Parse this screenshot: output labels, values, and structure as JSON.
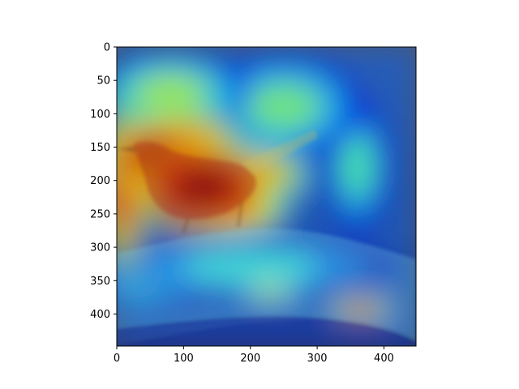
{
  "chart_data": {
    "type": "heatmap",
    "title": "",
    "xlabel": "",
    "ylabel": "",
    "xlim": [
      0,
      448
    ],
    "ylim": [
      448,
      0
    ],
    "y_inverted": true,
    "grid": false,
    "colormap": "jet",
    "overlay_on": "photo of a bird perched on a branch",
    "x_ticks": [
      {
        "value": 0,
        "label": "0"
      },
      {
        "value": 100,
        "label": "100"
      },
      {
        "value": 200,
        "label": "200"
      },
      {
        "value": 300,
        "label": "300"
      },
      {
        "value": 400,
        "label": "400"
      }
    ],
    "y_ticks": [
      {
        "value": 0,
        "label": "0"
      },
      {
        "value": 50,
        "label": "50"
      },
      {
        "value": 100,
        "label": "100"
      },
      {
        "value": 150,
        "label": "150"
      },
      {
        "value": 200,
        "label": "200"
      },
      {
        "value": 250,
        "label": "250"
      },
      {
        "value": 300,
        "label": "300"
      },
      {
        "value": 350,
        "label": "350"
      },
      {
        "value": 400,
        "label": "400"
      }
    ],
    "hotspots": [
      {
        "name": "bird-head",
        "x": 60,
        "y": 165,
        "rx": 60,
        "ry": 45,
        "intensity": 0.95
      },
      {
        "name": "bird-body",
        "x": 130,
        "y": 210,
        "rx": 80,
        "ry": 55,
        "intensity": 0.98
      },
      {
        "name": "bird-back",
        "x": 100,
        "y": 140,
        "rx": 70,
        "ry": 40,
        "intensity": 0.8
      },
      {
        "name": "tail",
        "x": 220,
        "y": 190,
        "rx": 55,
        "ry": 35,
        "intensity": 0.72
      },
      {
        "name": "wing-lower",
        "x": 180,
        "y": 245,
        "rx": 60,
        "ry": 30,
        "intensity": 0.78
      },
      {
        "name": "left-edge",
        "x": 10,
        "y": 210,
        "rx": 30,
        "ry": 100,
        "intensity": 0.85
      },
      {
        "name": "upper-left",
        "x": 80,
        "y": 70,
        "rx": 90,
        "ry": 50,
        "intensity": 0.55
      },
      {
        "name": "upper-mid",
        "x": 250,
        "y": 90,
        "rx": 90,
        "ry": 60,
        "intensity": 0.5
      },
      {
        "name": "right-patch",
        "x": 360,
        "y": 180,
        "rx": 40,
        "ry": 80,
        "intensity": 0.45
      },
      {
        "name": "branch-glow",
        "x": 200,
        "y": 330,
        "rx": 170,
        "ry": 35,
        "intensity": 0.42
      },
      {
        "name": "branch-left",
        "x": 50,
        "y": 350,
        "rx": 80,
        "ry": 35,
        "intensity": 0.4
      },
      {
        "name": "bottom-right",
        "x": 365,
        "y": 395,
        "rx": 35,
        "ry": 16,
        "intensity": 0.85
      },
      {
        "name": "bottom-mid",
        "x": 230,
        "y": 365,
        "rx": 40,
        "ry": 15,
        "intensity": 0.6
      }
    ],
    "background_intensity": 0.22
  }
}
